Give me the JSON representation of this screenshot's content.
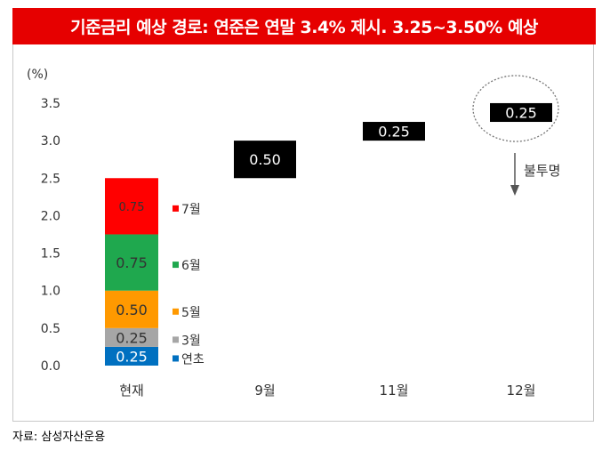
{
  "title": "기준금리 예상 경로: 연준은 연말 3.4% 제시. 3.25~3.50% 예상",
  "source": "자료: 삼성자산운용",
  "chart_data": {
    "type": "bar",
    "stacked": true,
    "ylabel": "(%)",
    "ylim": [
      0,
      3.5
    ],
    "yticks": [
      "0.0",
      "0.5",
      "1.0",
      "1.5",
      "2.0",
      "2.5",
      "3.0",
      "3.5"
    ],
    "grid": false,
    "categories": [
      "현재",
      "9월",
      "11월",
      "12월"
    ],
    "stack_current": [
      {
        "name": "연초",
        "value": 0.25,
        "label": "0.25",
        "color": "#0070c0",
        "text_color": "#ffffff"
      },
      {
        "name": "3월",
        "value": 0.25,
        "label": "0.25",
        "color": "#a6a6a6",
        "text_color": "#333333"
      },
      {
        "name": "5월",
        "value": 0.5,
        "label": "0.50",
        "color": "#ff9900",
        "text_color": "#333333"
      },
      {
        "name": "6월",
        "value": 0.75,
        "label": "0.75",
        "color": "#1fa84e",
        "text_color": "#333333"
      },
      {
        "name": "7월",
        "value": 0.75,
        "label": "0.75",
        "color": "#ff0000",
        "text_color": "#333333"
      }
    ],
    "floating_bars": [
      {
        "category": "9월",
        "from": 2.5,
        "to": 3.0,
        "label": "0.50",
        "color": "#000000"
      },
      {
        "category": "11월",
        "from": 3.0,
        "to": 3.25,
        "label": "0.25",
        "color": "#000000"
      },
      {
        "category": "12월",
        "from": 3.25,
        "to": 3.5,
        "label": "0.25",
        "color": "#000000"
      }
    ],
    "annotation": {
      "category": "12월",
      "text": "불투명",
      "shape": "dotted-ellipse-with-down-arrow"
    }
  }
}
